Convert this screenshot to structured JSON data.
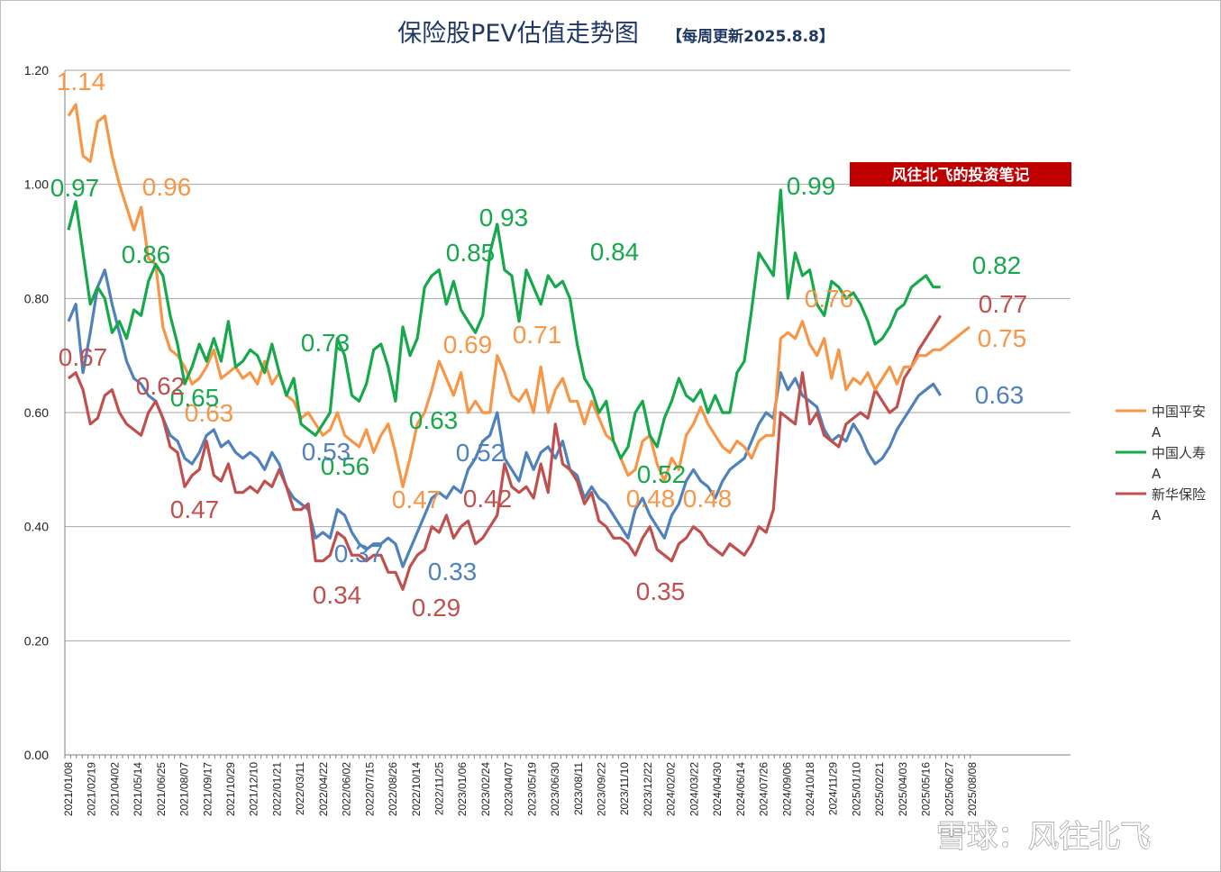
{
  "title": {
    "main": "保险股PEV估值走势图",
    "sub": "【每周更新2025.8.8】"
  },
  "banner": "风往北飞的投资笔记",
  "watermark": "雪球：风往北飞",
  "colors": {
    "ping_an": "#f79646",
    "china_life": "#16a84a",
    "new_china": "#c0504d",
    "cpic_blue": "#4f81bd",
    "banner_bg": "#c00000"
  },
  "chart_data": {
    "type": "line",
    "ylim": [
      0,
      1.2
    ],
    "yticks": [
      "0.00",
      "0.20",
      "0.40",
      "0.60",
      "0.80",
      "1.00",
      "1.20"
    ],
    "grid": true,
    "legend_position": "right",
    "x_tick_labels": [
      "2021/01/08",
      "2021/02/19",
      "2021/04/02",
      "2021/05/14",
      "2021/06/25",
      "2021/08/07",
      "2021/09/17",
      "2021/10/29",
      "2021/12/10",
      "2022/01/21",
      "2022/03/11",
      "2022/04/22",
      "2022/06/02",
      "2022/07/15",
      "2022/08/26",
      "2022/10/14",
      "2022/11/25",
      "2023/01/06",
      "2023/02/24",
      "2023/04/07",
      "2023/05/19",
      "2023/06/30",
      "2023/08/11",
      "2023/09/22",
      "2023/11/10",
      "2023/12/22",
      "2024/02/02",
      "2024/03/22",
      "2024/04/30",
      "2024/06/14",
      "2024/07/26",
      "2024/09/06",
      "2024/10/18",
      "2024/11/29",
      "2025/01/10",
      "2025/02/21",
      "2025/04/03",
      "2025/05/16",
      "2025/06/27",
      "2025/08/08"
    ],
    "series": [
      {
        "name": "中国平安A",
        "values": [
          1.12,
          1.14,
          1.05,
          1.04,
          1.11,
          1.12,
          1.05,
          1.0,
          0.96,
          0.92,
          0.96,
          0.87,
          0.86,
          0.75,
          0.71,
          0.7,
          0.68,
          0.65,
          0.66,
          0.68,
          0.71,
          0.66,
          0.67,
          0.68,
          0.66,
          0.67,
          0.65,
          0.69,
          0.65,
          0.67,
          0.63,
          0.62,
          0.59,
          0.6,
          0.58,
          0.56,
          0.57,
          0.6,
          0.56,
          0.55,
          0.54,
          0.57,
          0.53,
          0.56,
          0.58,
          0.53,
          0.47,
          0.52,
          0.58,
          0.6,
          0.64,
          0.69,
          0.66,
          0.63,
          0.67,
          0.6,
          0.62,
          0.6,
          0.6,
          0.7,
          0.67,
          0.63,
          0.62,
          0.64,
          0.6,
          0.68,
          0.6,
          0.64,
          0.66,
          0.62,
          0.62,
          0.58,
          0.62,
          0.59,
          0.56,
          0.55,
          0.52,
          0.49,
          0.5,
          0.55,
          0.56,
          0.51,
          0.48,
          0.52,
          0.5,
          0.56,
          0.58,
          0.61,
          0.58,
          0.56,
          0.54,
          0.53,
          0.55,
          0.54,
          0.52,
          0.55,
          0.56,
          0.56,
          0.73,
          0.74,
          0.73,
          0.76,
          0.72,
          0.7,
          0.73,
          0.66,
          0.71,
          0.64,
          0.66,
          0.65,
          0.67,
          0.64,
          0.66,
          0.68,
          0.65,
          0.68,
          0.68,
          0.7,
          0.7,
          0.71,
          0.71,
          0.72,
          0.73,
          0.74,
          0.75
        ]
      },
      {
        "name": "中国人寿A",
        "values": [
          0.92,
          0.97,
          0.88,
          0.79,
          0.82,
          0.8,
          0.74,
          0.76,
          0.73,
          0.78,
          0.77,
          0.83,
          0.86,
          0.84,
          0.77,
          0.72,
          0.65,
          0.68,
          0.72,
          0.69,
          0.73,
          0.69,
          0.76,
          0.68,
          0.69,
          0.71,
          0.7,
          0.67,
          0.72,
          0.67,
          0.63,
          0.66,
          0.58,
          0.57,
          0.56,
          0.58,
          0.6,
          0.73,
          0.7,
          0.63,
          0.62,
          0.65,
          0.71,
          0.72,
          0.68,
          0.62,
          0.75,
          0.7,
          0.73,
          0.82,
          0.84,
          0.85,
          0.79,
          0.83,
          0.78,
          0.76,
          0.74,
          0.77,
          0.88,
          0.93,
          0.85,
          0.84,
          0.76,
          0.85,
          0.82,
          0.79,
          0.84,
          0.82,
          0.83,
          0.8,
          0.72,
          0.66,
          0.64,
          0.6,
          0.62,
          0.55,
          0.52,
          0.54,
          0.6,
          0.62,
          0.56,
          0.54,
          0.59,
          0.62,
          0.66,
          0.63,
          0.62,
          0.64,
          0.6,
          0.63,
          0.6,
          0.6,
          0.67,
          0.69,
          0.78,
          0.88,
          0.86,
          0.84,
          0.99,
          0.8,
          0.88,
          0.84,
          0.85,
          0.79,
          0.77,
          0.83,
          0.82,
          0.8,
          0.81,
          0.79,
          0.76,
          0.72,
          0.73,
          0.75,
          0.78,
          0.79,
          0.82,
          0.83,
          0.84,
          0.82,
          0.82
        ]
      },
      {
        "name": "新华保险A",
        "values": [
          0.66,
          0.67,
          0.64,
          0.58,
          0.59,
          0.63,
          0.64,
          0.6,
          0.58,
          0.57,
          0.56,
          0.6,
          0.62,
          0.59,
          0.54,
          0.53,
          0.47,
          0.49,
          0.5,
          0.55,
          0.49,
          0.48,
          0.51,
          0.46,
          0.46,
          0.47,
          0.46,
          0.48,
          0.47,
          0.5,
          0.47,
          0.43,
          0.43,
          0.44,
          0.34,
          0.34,
          0.35,
          0.39,
          0.38,
          0.35,
          0.35,
          0.34,
          0.35,
          0.35,
          0.32,
          0.32,
          0.29,
          0.33,
          0.35,
          0.36,
          0.4,
          0.39,
          0.42,
          0.38,
          0.4,
          0.41,
          0.37,
          0.38,
          0.4,
          0.42,
          0.51,
          0.47,
          0.46,
          0.47,
          0.45,
          0.51,
          0.46,
          0.58,
          0.51,
          0.5,
          0.48,
          0.44,
          0.46,
          0.41,
          0.4,
          0.38,
          0.38,
          0.37,
          0.35,
          0.38,
          0.4,
          0.36,
          0.35,
          0.34,
          0.37,
          0.38,
          0.4,
          0.39,
          0.37,
          0.36,
          0.35,
          0.37,
          0.36,
          0.35,
          0.37,
          0.4,
          0.39,
          0.43,
          0.6,
          0.59,
          0.58,
          0.67,
          0.58,
          0.6,
          0.56,
          0.55,
          0.54,
          0.58,
          0.59,
          0.6,
          0.59,
          0.64,
          0.62,
          0.6,
          0.61,
          0.66,
          0.68,
          0.71,
          0.73,
          0.75,
          0.77
        ]
      },
      {
        "values": [
          0.76,
          0.79,
          0.67,
          0.74,
          0.82,
          0.85,
          0.79,
          0.74,
          0.69,
          0.66,
          0.65,
          0.63,
          0.62,
          0.59,
          0.56,
          0.55,
          0.52,
          0.51,
          0.53,
          0.56,
          0.57,
          0.54,
          0.55,
          0.53,
          0.52,
          0.53,
          0.52,
          0.5,
          0.53,
          0.51,
          0.47,
          0.45,
          0.44,
          0.43,
          0.38,
          0.39,
          0.38,
          0.43,
          0.42,
          0.39,
          0.37,
          0.36,
          0.37,
          0.37,
          0.38,
          0.37,
          0.33,
          0.36,
          0.39,
          0.42,
          0.45,
          0.46,
          0.45,
          0.47,
          0.46,
          0.5,
          0.52,
          0.55,
          0.56,
          0.6,
          0.52,
          0.5,
          0.48,
          0.53,
          0.5,
          0.53,
          0.54,
          0.52,
          0.55,
          0.5,
          0.49,
          0.45,
          0.47,
          0.45,
          0.44,
          0.42,
          0.4,
          0.38,
          0.43,
          0.45,
          0.42,
          0.4,
          0.38,
          0.42,
          0.44,
          0.48,
          0.5,
          0.48,
          0.47,
          0.45,
          0.48,
          0.5,
          0.51,
          0.52,
          0.55,
          0.58,
          0.6,
          0.59,
          0.67,
          0.64,
          0.66,
          0.63,
          0.62,
          0.61,
          0.57,
          0.55,
          0.56,
          0.55,
          0.58,
          0.56,
          0.53,
          0.51,
          0.52,
          0.54,
          0.57,
          0.59,
          0.61,
          0.63,
          0.64,
          0.65,
          0.63
        ]
      }
    ],
    "data_labels": [
      {
        "text": "1.14",
        "color": "#f79646"
      },
      {
        "text": "0.96",
        "color": "#f79646"
      },
      {
        "text": "0.63",
        "color": "#f79646"
      },
      {
        "text": "0.69",
        "color": "#f79646"
      },
      {
        "text": "0.71",
        "color": "#f79646"
      },
      {
        "text": "0.47",
        "color": "#f79646"
      },
      {
        "text": "0.48",
        "color": "#f79646"
      },
      {
        "text": "0.48",
        "color": "#f79646"
      },
      {
        "text": "0.76",
        "color": "#f79646"
      },
      {
        "text": "0.75",
        "color": "#f79646"
      },
      {
        "text": "0.97",
        "color": "#16a84a"
      },
      {
        "text": "0.86",
        "color": "#16a84a"
      },
      {
        "text": "0.65",
        "color": "#16a84a"
      },
      {
        "text": "0.73",
        "color": "#16a84a"
      },
      {
        "text": "0.56",
        "color": "#16a84a"
      },
      {
        "text": "0.63",
        "color": "#16a84a"
      },
      {
        "text": "0.85",
        "color": "#16a84a"
      },
      {
        "text": "0.93",
        "color": "#16a84a"
      },
      {
        "text": "0.84",
        "color": "#16a84a"
      },
      {
        "text": "0.52",
        "color": "#16a84a"
      },
      {
        "text": "0.99",
        "color": "#16a84a"
      },
      {
        "text": "0.82",
        "color": "#16a84a"
      },
      {
        "text": "0.67",
        "color": "#c0504d"
      },
      {
        "text": "0.62",
        "color": "#c0504d"
      },
      {
        "text": "0.47",
        "color": "#c0504d"
      },
      {
        "text": "0.34",
        "color": "#c0504d"
      },
      {
        "text": "0.29",
        "color": "#c0504d"
      },
      {
        "text": "0.42",
        "color": "#c0504d"
      },
      {
        "text": "0.35",
        "color": "#c0504d"
      },
      {
        "text": "0.77",
        "color": "#c0504d"
      },
      {
        "text": "0.53",
        "color": "#4f81bd"
      },
      {
        "text": "0.37",
        "color": "#4f81bd"
      },
      {
        "text": "0.33",
        "color": "#4f81bd"
      },
      {
        "text": "0.52",
        "color": "#4f81bd"
      },
      {
        "text": "0.63",
        "color": "#4f81bd"
      }
    ],
    "legend": [
      {
        "name": "中国平安",
        "suffix": "A",
        "color": "#f79646"
      },
      {
        "name": "中国人寿",
        "suffix": "A",
        "color": "#16a84a"
      },
      {
        "name": "新华保险",
        "suffix": "A",
        "color": "#c0504d"
      }
    ]
  }
}
